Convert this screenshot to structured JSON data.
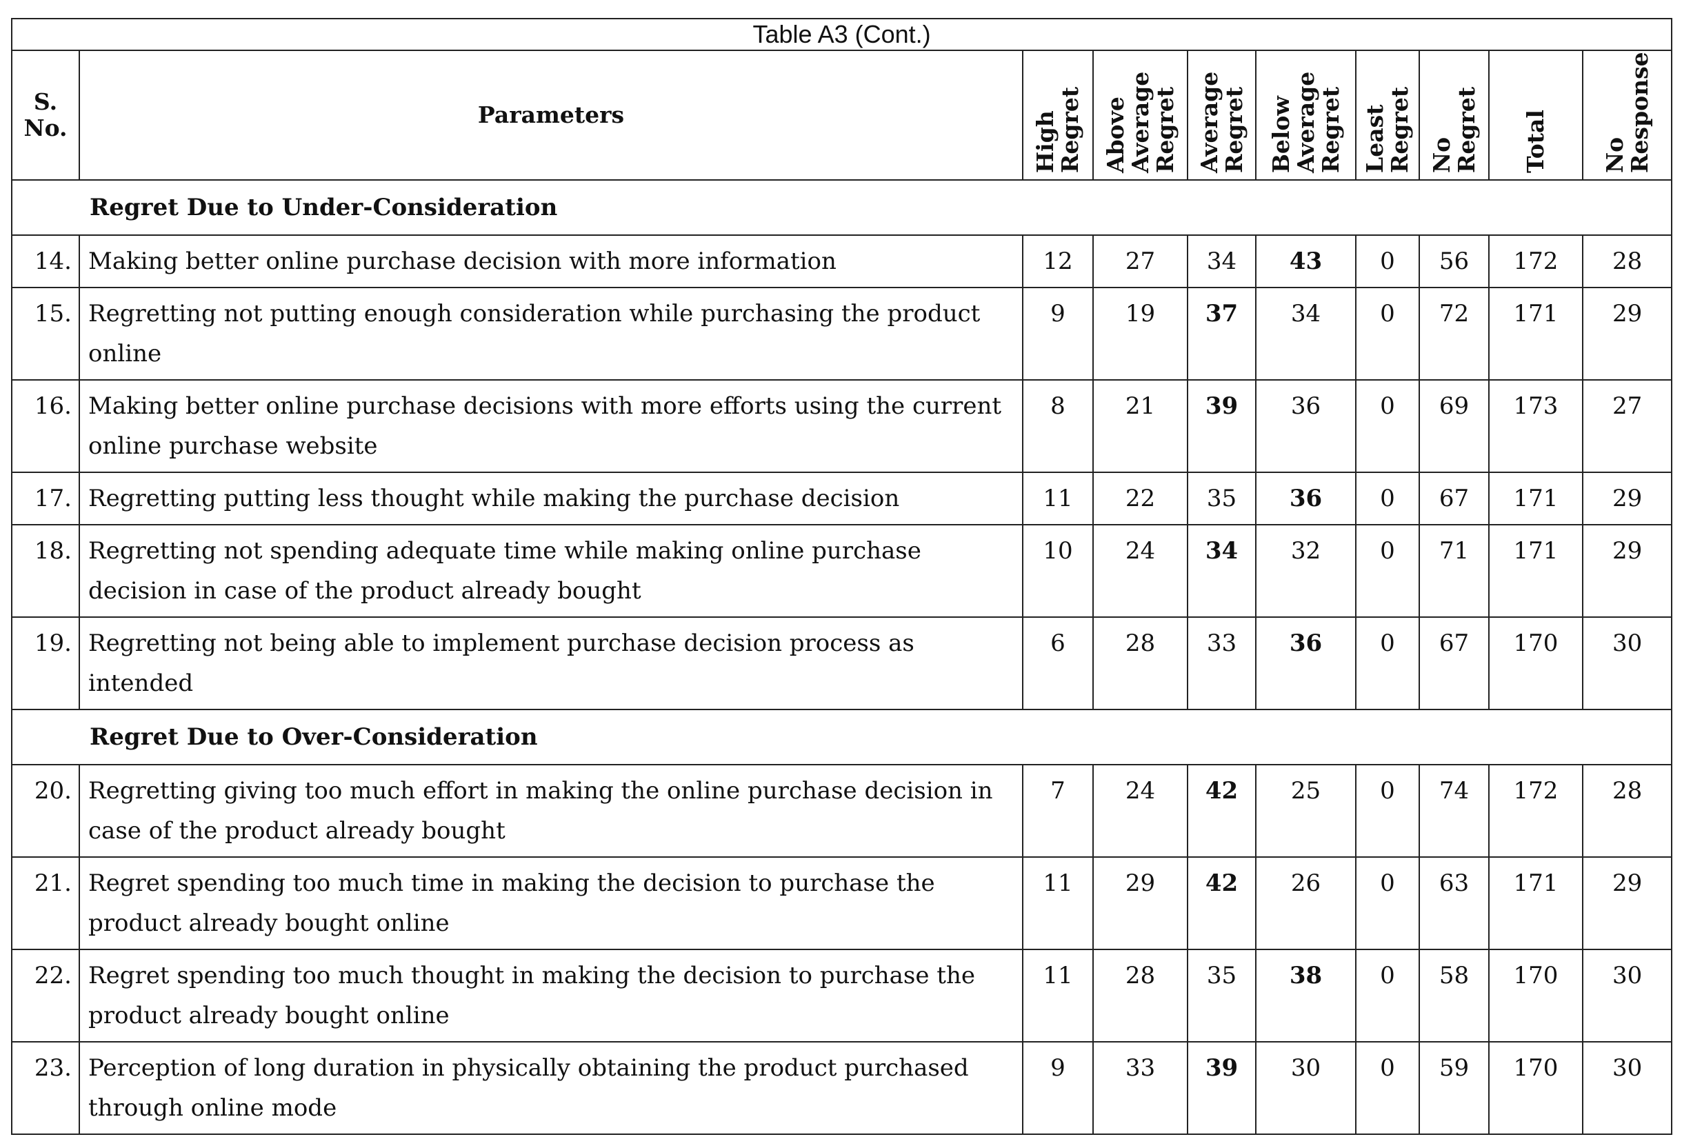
{
  "table": {
    "caption": "Table A3 (Cont.)",
    "columns": [
      "S. No.",
      "Parameters",
      "High Regret",
      "Above Average Regret",
      "Average Regret",
      "Below Average Regret",
      "Least Regret",
      "No Regret",
      "Total",
      "No Response"
    ],
    "sections": [
      {
        "title": "Regret Due to Under-Consideration",
        "rows": [
          {
            "sno": "14.",
            "text": "Making better online purchase decision with more information",
            "values": [
              12,
              27,
              34,
              43,
              0,
              56,
              172,
              28
            ],
            "bold": 3
          },
          {
            "sno": "15.",
            "text": "Regretting not putting enough consideration while purchasing the product online",
            "values": [
              9,
              19,
              37,
              34,
              0,
              72,
              171,
              29
            ],
            "bold": 2
          },
          {
            "sno": "16.",
            "text": "Making better online purchase decisions with more efforts using the current online purchase website",
            "values": [
              8,
              21,
              39,
              36,
              0,
              69,
              173,
              27
            ],
            "bold": 2
          },
          {
            "sno": "17.",
            "text": "Regretting putting less thought while making the purchase decision",
            "values": [
              11,
              22,
              35,
              36,
              0,
              67,
              171,
              29
            ],
            "bold": 3
          },
          {
            "sno": "18.",
            "text": "Regretting not spending adequate time while making online purchase decision in case of the product already bought",
            "values": [
              10,
              24,
              34,
              32,
              0,
              71,
              171,
              29
            ],
            "bold": 2
          },
          {
            "sno": "19.",
            "text": "Regretting not being able to implement purchase decision process as intended",
            "values": [
              6,
              28,
              33,
              36,
              0,
              67,
              170,
              30
            ],
            "bold": 3
          }
        ]
      },
      {
        "title": "Regret Due to Over-Consideration",
        "rows": [
          {
            "sno": "20.",
            "text": "Regretting giving too much effort in making the online purchase decision in case of the product already bought",
            "values": [
              7,
              24,
              42,
              25,
              0,
              74,
              172,
              28
            ],
            "bold": 2
          },
          {
            "sno": "21.",
            "text": "Regret spending too much time in making the decision to purchase the product already bought online",
            "values": [
              11,
              29,
              42,
              26,
              0,
              63,
              171,
              29
            ],
            "bold": 2
          },
          {
            "sno": "22.",
            "text": "Regret spending too much thought in making the decision to purchase the product already bought online",
            "values": [
              11,
              28,
              35,
              38,
              0,
              58,
              170,
              30
            ],
            "bold": 3
          },
          {
            "sno": "23.",
            "text": "Perception of long duration in physically obtaining the product purchased through online mode",
            "values": [
              9,
              33,
              39,
              30,
              0,
              59,
              170,
              30
            ],
            "bold": 2
          }
        ]
      }
    ]
  }
}
